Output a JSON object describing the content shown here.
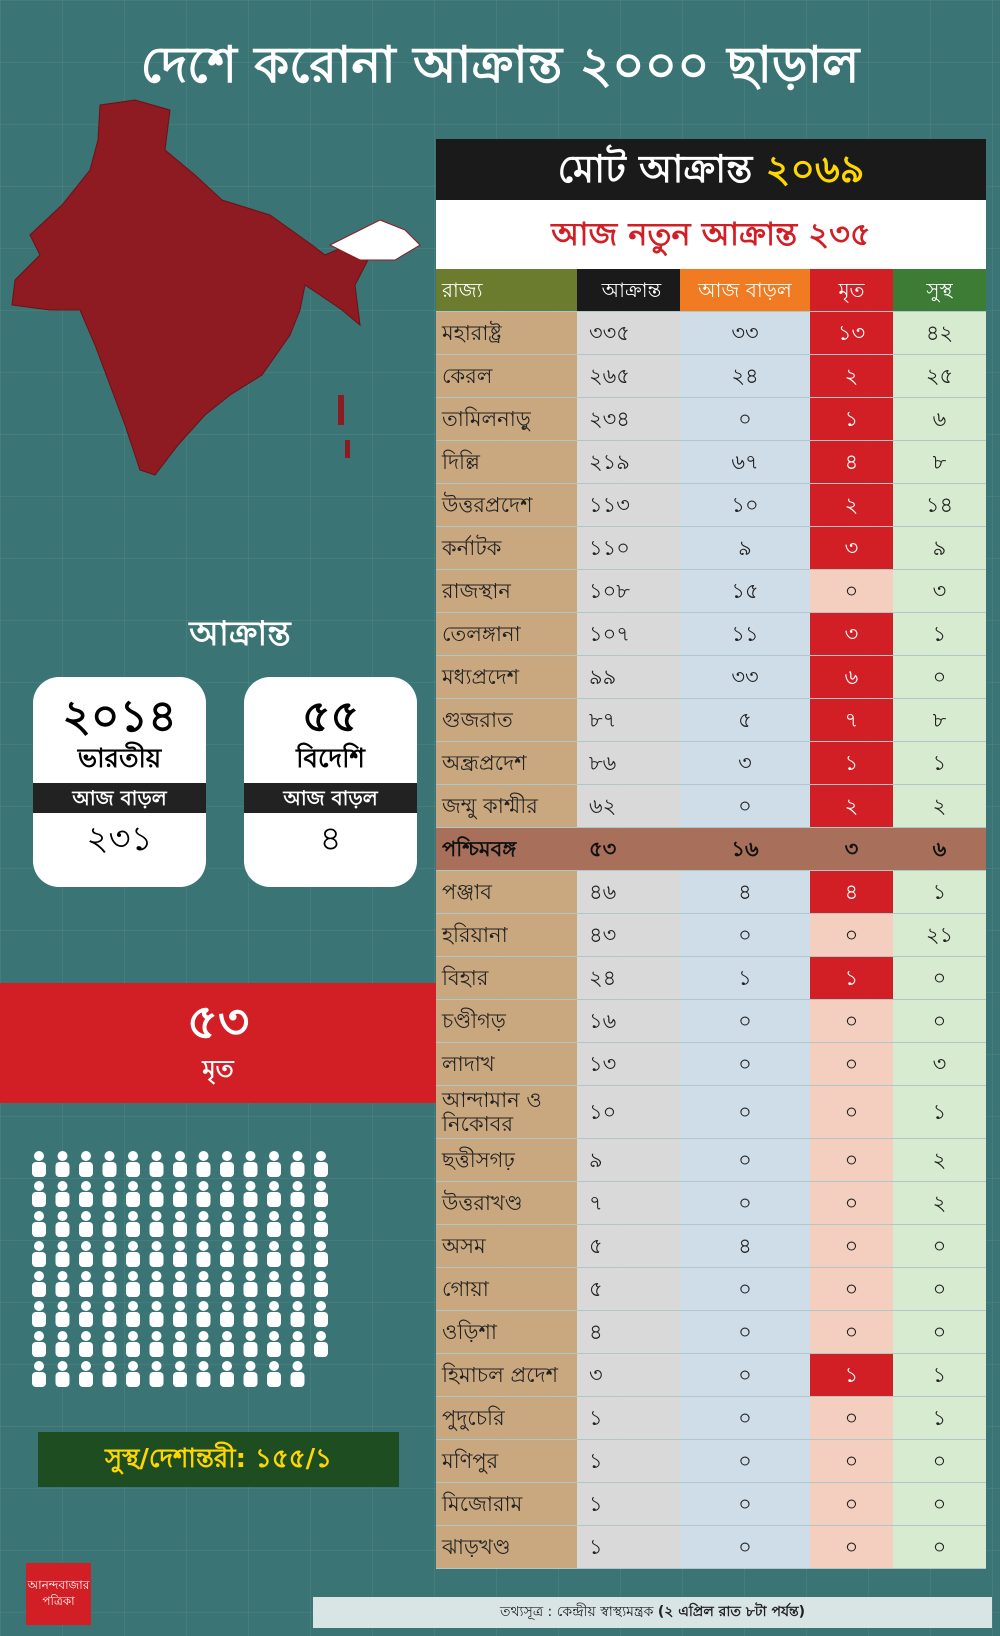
{
  "header": {
    "title": "দেশে করোনা আক্রান্ত ২০০০ ছাড়াল"
  },
  "summary": {
    "heading": "আক্রান্ত",
    "cards": [
      {
        "number": "২০১৪",
        "label": "ভারতীয়",
        "sub_label": "আজ বাড়ল",
        "sub_number": "২৩১"
      },
      {
        "number": "৫৫",
        "label": "বিদেশি",
        "sub_label": "আজ বাড়ল",
        "sub_number": "৪"
      }
    ],
    "deaths": {
      "number": "৫৩",
      "label": "মৃত"
    },
    "recovered": "সুস্থ/দেশান্তরী: ১৫৫/১"
  },
  "table": {
    "total_label": "মোট আক্রান্ত",
    "total": "২০৬৯",
    "new_today": "আজ নতুন আক্রান্ত ২৩৫",
    "columns": [
      "রাজ্য",
      "আক্রান্ত",
      "আজ বাড়ল",
      "মৃত",
      "সুস্থ"
    ],
    "rows": [
      {
        "cells": [
          "মহারাষ্ট্র",
          "৩৩৫",
          "৩৩",
          "১৩",
          "৪২"
        ]
      },
      {
        "cells": [
          "কেরল",
          "২৬৫",
          "২৪",
          "২",
          "২৫"
        ]
      },
      {
        "cells": [
          "তামিলনাড়ু",
          "২৩৪",
          "০",
          "১",
          "৬"
        ]
      },
      {
        "cells": [
          "দিল্লি",
          "২১৯",
          "৬৭",
          "৪",
          "৮"
        ]
      },
      {
        "cells": [
          "উত্তরপ্রদেশ",
          "১১৩",
          "১০",
          "২",
          "১৪"
        ]
      },
      {
        "cells": [
          "কর্নাটক",
          "১১০",
          "৯",
          "৩",
          "৯"
        ]
      },
      {
        "cells": [
          "রাজস্থান",
          "১০৮",
          "১৫",
          "০",
          "৩"
        ]
      },
      {
        "cells": [
          "তেলঙ্গানা",
          "১০৭",
          "১১",
          "৩",
          "১"
        ]
      },
      {
        "cells": [
          "মধ্যপ্রদেশ",
          "৯৯",
          "৩৩",
          "৬",
          "০"
        ]
      },
      {
        "cells": [
          "গুজরাত",
          "৮৭",
          "৫",
          "৭",
          "৮"
        ]
      },
      {
        "cells": [
          "অন্ধ্রপ্রদেশ",
          "৮৬",
          "৩",
          "১",
          "১"
        ]
      },
      {
        "cells": [
          "জম্মু কাশ্মীর",
          "৬২",
          "০",
          "২",
          "২"
        ]
      },
      {
        "cells": [
          "পশ্চিমবঙ্গ",
          "৫৩",
          "১৬",
          "৩",
          "৬"
        ],
        "highlight": true
      },
      {
        "cells": [
          "পঞ্জাব",
          "৪৬",
          "৪",
          "৪",
          "১"
        ]
      },
      {
        "cells": [
          "হরিয়ানা",
          "৪৩",
          "০",
          "০",
          "২১"
        ]
      },
      {
        "cells": [
          "বিহার",
          "২৪",
          "১",
          "১",
          "০"
        ]
      },
      {
        "cells": [
          "চণ্ডীগড়",
          "১৬",
          "০",
          "০",
          "০"
        ]
      },
      {
        "cells": [
          "লাদাখ",
          "১৩",
          "০",
          "০",
          "৩"
        ]
      },
      {
        "cells": [
          "আন্দামান ও নিকোবর",
          "১০",
          "০",
          "০",
          "১"
        ]
      },
      {
        "cells": [
          "ছত্তীসগঢ়",
          "৯",
          "০",
          "০",
          "২"
        ]
      },
      {
        "cells": [
          "উত্তরাখণ্ড",
          "৭",
          "০",
          "০",
          "২"
        ]
      },
      {
        "cells": [
          "অসম",
          "৫",
          "৪",
          "০",
          "০"
        ]
      },
      {
        "cells": [
          "গোয়া",
          "৫",
          "০",
          "০",
          "০"
        ]
      },
      {
        "cells": [
          "ওড়িশা",
          "৪",
          "০",
          "০",
          "০"
        ]
      },
      {
        "cells": [
          "হিমাচল প্রদেশ",
          "৩",
          "০",
          "১",
          "১"
        ]
      },
      {
        "cells": [
          "পুদুচেরি",
          "১",
          "০",
          "০",
          "১"
        ]
      },
      {
        "cells": [
          "মণিপুর",
          "১",
          "০",
          "০",
          "০"
        ]
      },
      {
        "cells": [
          "মিজোরাম",
          "১",
          "০",
          "০",
          "০"
        ]
      },
      {
        "cells": [
          "ঝাড়খণ্ড",
          "১",
          "০",
          "০",
          "০"
        ]
      }
    ]
  },
  "logo": {
    "line1": "আনন্দবাজার",
    "line2": "পত্রিকা"
  },
  "footer": {
    "source": "তথ্যসূত্র : কেন্দ্রীয় স্বাস্থ্যমন্ত্রক",
    "date": "(২ এপ্রিল রাত ৮টা পর্যন্ত)"
  }
}
